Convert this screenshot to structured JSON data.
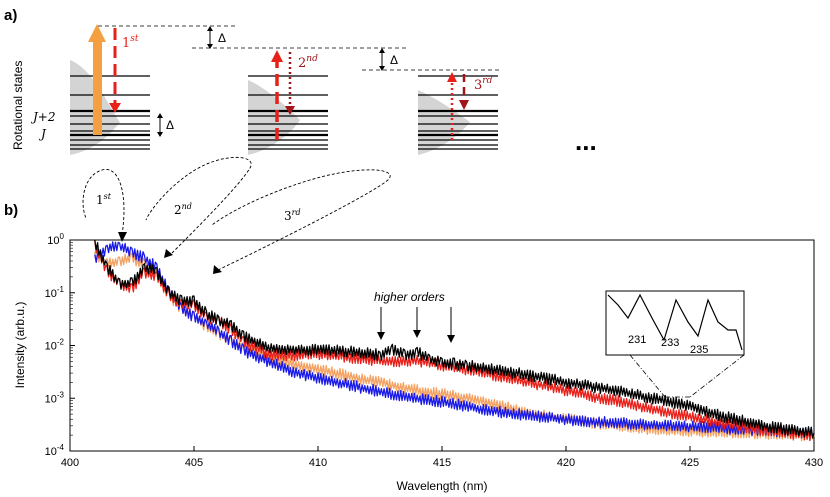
{
  "panel_a": {
    "label": "a)",
    "ylabel": "Rotational states",
    "level_j": "J",
    "level_j2": "J+2",
    "delta": "Δ",
    "orders": [
      {
        "base": "1",
        "sup": "st",
        "color": "#e8201a"
      },
      {
        "base": "2",
        "sup": "nd",
        "color": "#e8201a"
      },
      {
        "base": "3",
        "sup": "rd",
        "color": "#a0141a"
      }
    ],
    "ellipsis": "..."
  },
  "panel_b": {
    "label": "b)",
    "higher_orders_label": "higher orders",
    "inset_labels": [
      "231",
      "233",
      "235"
    ],
    "order_callouts": [
      {
        "base": "1",
        "sup": "st"
      },
      {
        "base": "2",
        "sup": "nd"
      },
      {
        "base": "3",
        "sup": "rd"
      }
    ]
  },
  "chart_data": {
    "type": "line",
    "xlabel": "Wavelength (nm)",
    "ylabel": "Intensity  (arb.u.)",
    "xlim": [
      400,
      430
    ],
    "ylim": [
      0.0001,
      1
    ],
    "yscale": "log",
    "x_ticks": [
      400,
      405,
      410,
      415,
      420,
      425,
      430
    ],
    "y_ticks": [
      {
        "base": "10",
        "exp": "0",
        "value": 1
      },
      {
        "base": "10",
        "exp": "-1",
        "value": 0.1
      },
      {
        "base": "10",
        "exp": "-2",
        "value": 0.01
      },
      {
        "base": "10",
        "exp": "-3",
        "value": 0.001
      },
      {
        "base": "10",
        "exp": "-4",
        "value": 0.0001
      }
    ],
    "series": [
      {
        "color": "#000000",
        "x": [
          401,
          401.5,
          402,
          402.5,
          403,
          403.5,
          404,
          404.5,
          405,
          405.5,
          406,
          406.5,
          407,
          408,
          409,
          410,
          411,
          412,
          412.5,
          413,
          413.5,
          414,
          414.5,
          415,
          415.5,
          416,
          417,
          418,
          419,
          420,
          421,
          422,
          423,
          424,
          425,
          426,
          427,
          428,
          429,
          430
        ],
        "y": [
          0.9,
          0.3,
          0.15,
          0.15,
          0.3,
          0.25,
          0.1,
          0.07,
          0.07,
          0.04,
          0.03,
          0.025,
          0.015,
          0.009,
          0.0082,
          0.0082,
          0.0078,
          0.0072,
          0.0065,
          0.0085,
          0.0065,
          0.0075,
          0.0055,
          0.0048,
          0.0045,
          0.0042,
          0.0036,
          0.003,
          0.0025,
          0.002,
          0.0017,
          0.0014,
          0.0011,
          0.0009,
          0.0007,
          0.0005,
          0.00038,
          0.0003,
          0.00025,
          0.00022
        ]
      },
      {
        "color": "#e8201a",
        "x": [
          401,
          401.5,
          402,
          402.5,
          403,
          403.5,
          404,
          404.5,
          405,
          405.5,
          406,
          406.5,
          407,
          408,
          409,
          410,
          411,
          412,
          413,
          414,
          415,
          416,
          417,
          418,
          419,
          420,
          421,
          422,
          423,
          424,
          425,
          426,
          427,
          428,
          429,
          430
        ],
        "y": [
          0.8,
          0.25,
          0.15,
          0.12,
          0.25,
          0.2,
          0.09,
          0.06,
          0.06,
          0.035,
          0.03,
          0.02,
          0.012,
          0.007,
          0.0065,
          0.007,
          0.0062,
          0.0055,
          0.0048,
          0.0052,
          0.0042,
          0.0035,
          0.0028,
          0.0022,
          0.0018,
          0.0014,
          0.0011,
          0.0009,
          0.0007,
          0.00055,
          0.00045,
          0.00035,
          0.0003,
          0.00025,
          0.00022,
          0.0002
        ]
      },
      {
        "color": "#f4a262",
        "x": [
          401,
          401.5,
          402,
          402.5,
          403,
          403.5,
          404,
          404.5,
          405,
          405.5,
          406,
          406.5,
          407,
          408,
          409,
          410,
          411,
          412,
          413,
          414,
          415,
          416,
          417,
          418,
          419,
          420,
          421,
          422,
          423,
          424,
          425,
          426,
          427,
          428,
          429,
          430
        ],
        "y": [
          0.5,
          0.35,
          0.4,
          0.45,
          0.35,
          0.2,
          0.09,
          0.05,
          0.035,
          0.022,
          0.017,
          0.012,
          0.009,
          0.006,
          0.0045,
          0.0035,
          0.0028,
          0.0022,
          0.0018,
          0.0014,
          0.0012,
          0.001,
          0.0008,
          0.0006,
          0.00048,
          0.0004,
          0.00035,
          0.0003,
          0.00027,
          0.00025,
          0.00024,
          0.00023,
          0.00022,
          0.00021,
          0.0002,
          0.0002
        ]
      },
      {
        "color": "#1a1ae8",
        "x": [
          401,
          401.5,
          402,
          402.5,
          403,
          403.5,
          404,
          404.5,
          405,
          405.5,
          406,
          406.5,
          407,
          408,
          409,
          410,
          411,
          412,
          413,
          414,
          415,
          416,
          417,
          418,
          419,
          420,
          421,
          422,
          423,
          424,
          425,
          426,
          427,
          428,
          429,
          430
        ],
        "y": [
          0.45,
          0.7,
          0.75,
          0.6,
          0.45,
          0.3,
          0.1,
          0.05,
          0.035,
          0.025,
          0.018,
          0.012,
          0.008,
          0.005,
          0.0032,
          0.0024,
          0.0019,
          0.0015,
          0.0012,
          0.001,
          0.00085,
          0.0007,
          0.00058,
          0.0005,
          0.00044,
          0.0004,
          0.00036,
          0.00034,
          0.00032,
          0.0003,
          0.00029,
          0.00028,
          0.00026,
          0.00025,
          0.00023,
          0.00022
        ]
      }
    ]
  }
}
